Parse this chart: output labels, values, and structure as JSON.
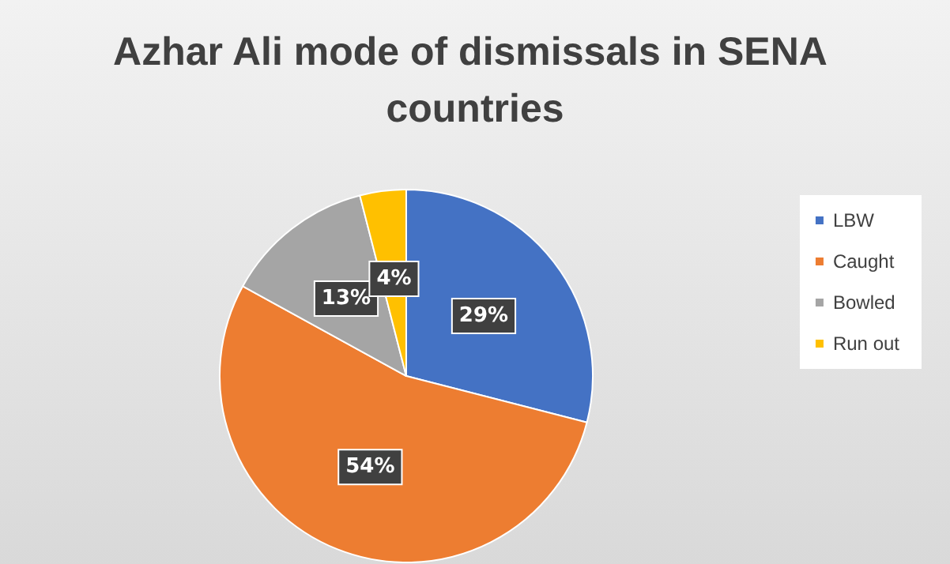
{
  "chart_data": {
    "type": "pie",
    "title": "Azhar Ali mode of dismissals in SENA countries",
    "categories": [
      "LBW",
      "Caught",
      "Bowled",
      "Run out"
    ],
    "values": [
      29,
      54,
      13,
      4
    ],
    "colors": [
      "#4472c4",
      "#ed7d31",
      "#a5a5a5",
      "#ffc000"
    ],
    "value_labels": [
      "29%",
      "54%",
      "13%",
      "4%"
    ],
    "legend": "right"
  }
}
